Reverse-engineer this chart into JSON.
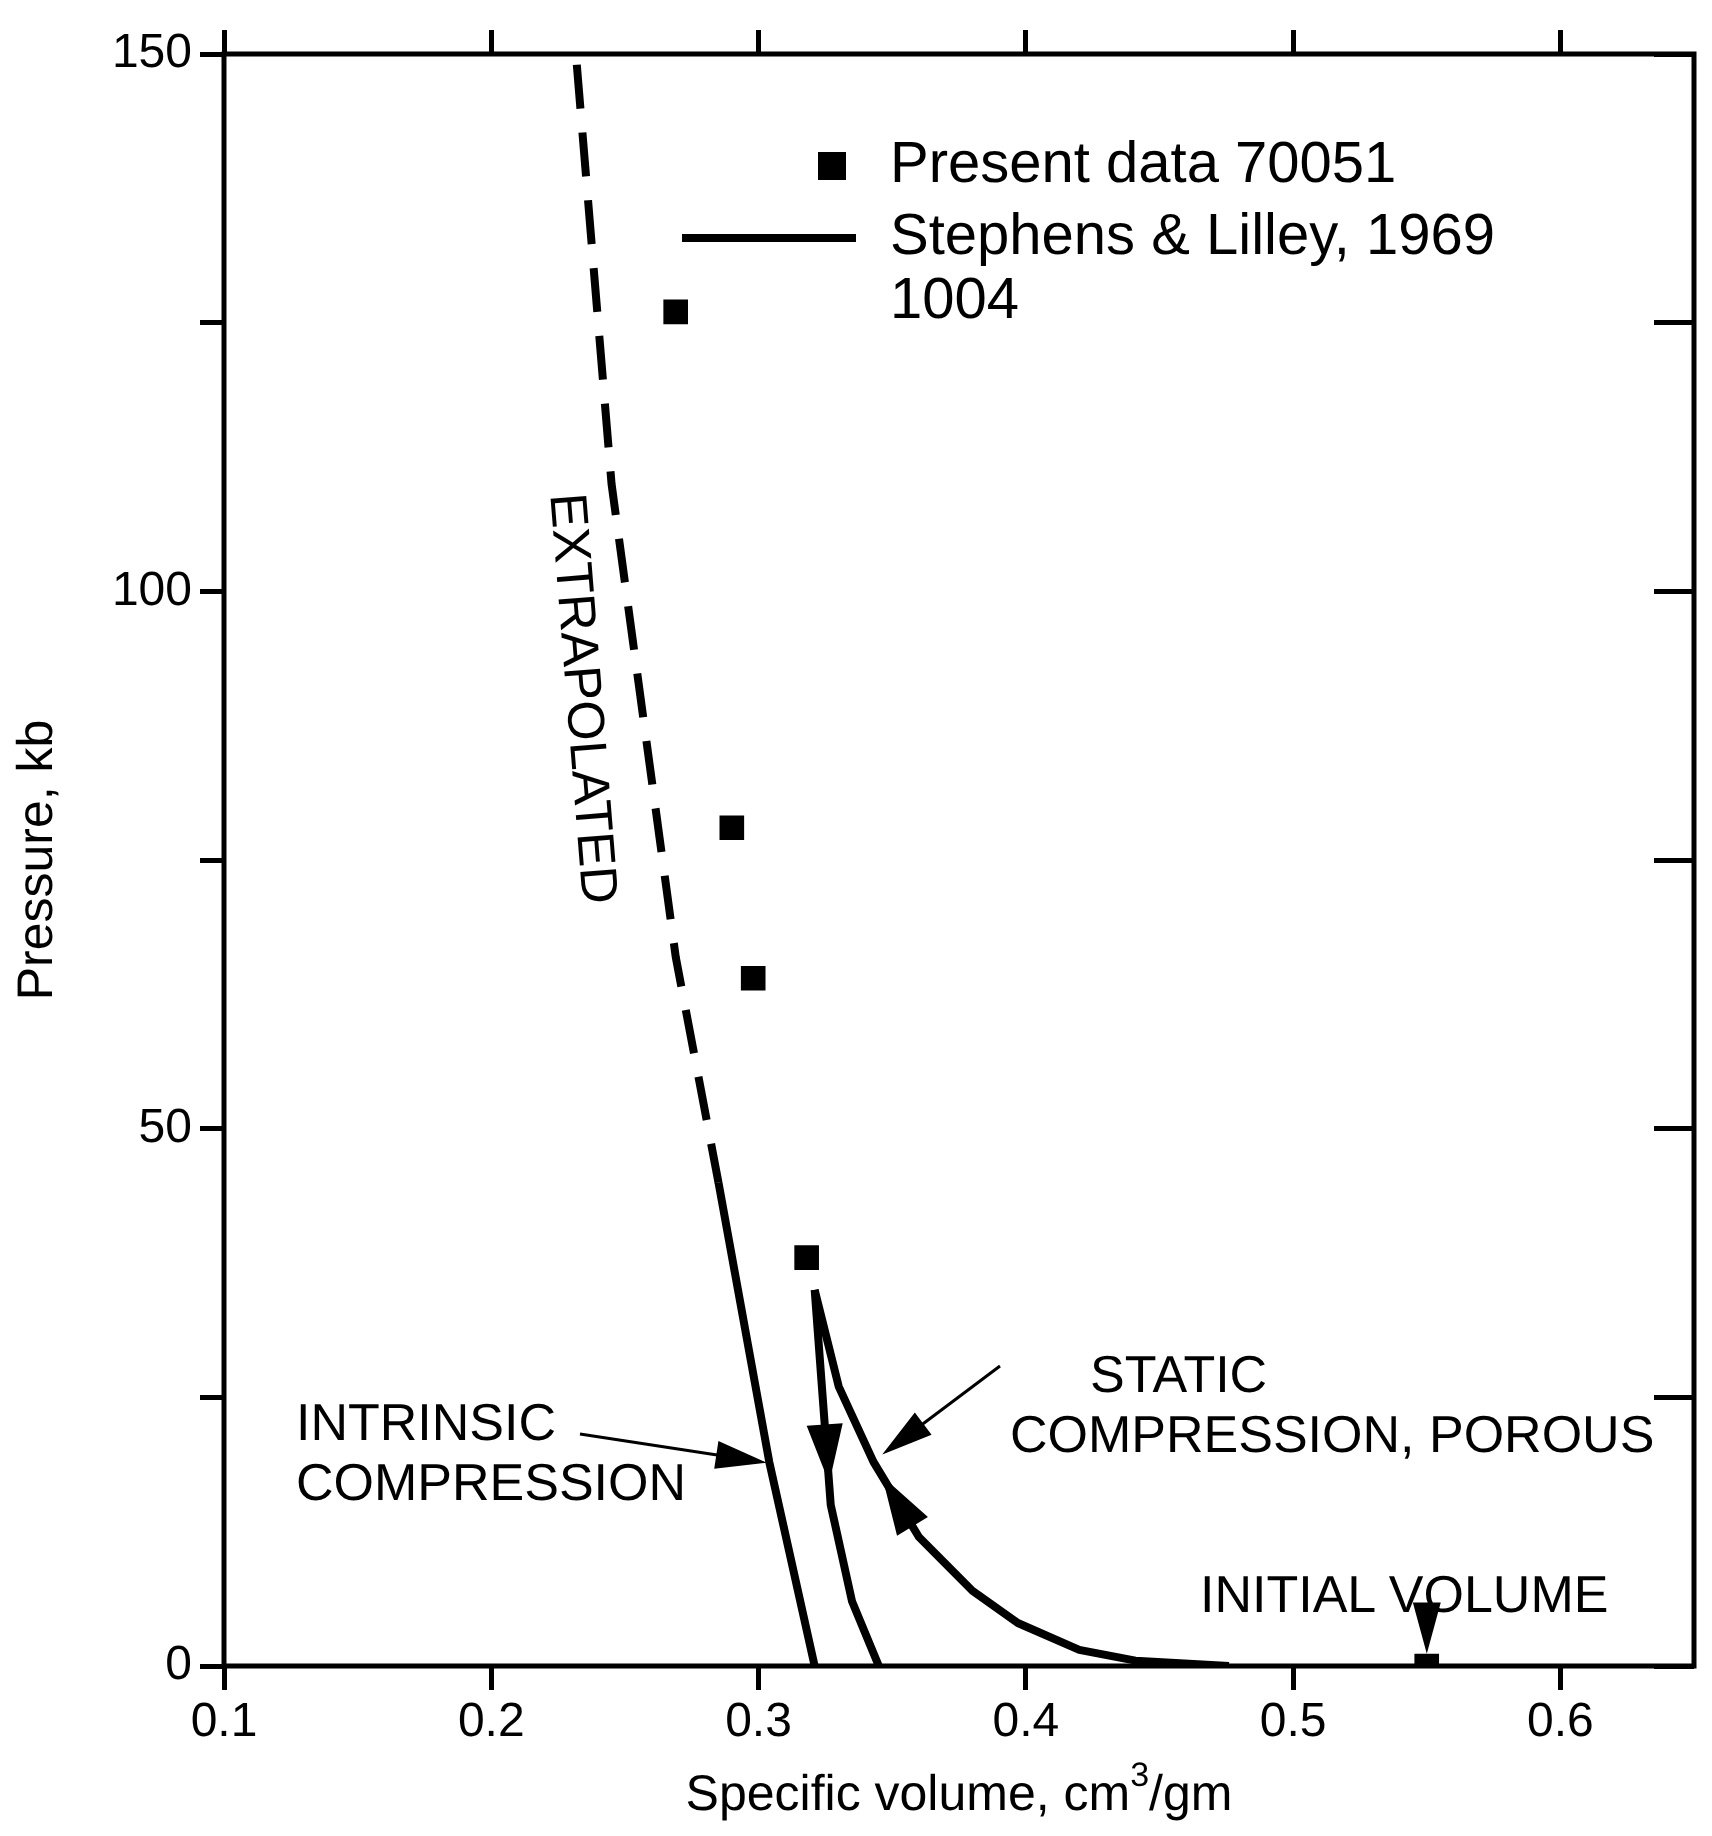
{
  "chart_data": {
    "type": "scatter",
    "xlabel": "Specific volume, cm$^{3}$/gm",
    "ylabel": "Pressure, kb",
    "xlim": [
      0.1,
      0.65
    ],
    "ylim": [
      0,
      150
    ],
    "xticks": [
      0.1,
      0.2,
      0.3,
      0.4,
      0.5,
      0.6
    ],
    "yticks": [
      0,
      {
        "value": 25,
        "label": null
      },
      50,
      {
        "value": 75,
        "label": null
      },
      100,
      {
        "value": 125,
        "label": null
      },
      150
    ],
    "grid": false,
    "legend": "top right",
    "series": [
      {
        "name": "Present data 70051",
        "marker": "square",
        "color": "#000000",
        "x": [
          0.269,
          0.29,
          0.298,
          0.318,
          0.55
        ],
        "values": [
          126,
          78,
          64,
          38,
          0
        ]
      },
      {
        "name": "Stephens & Lilley, 1969 1004",
        "type": "line",
        "line_style": "solid",
        "marker": "none",
        "color": "#000000",
        "x": [
          0.285,
          0.304,
          0.321
        ],
        "values": [
          45,
          19,
          0
        ]
      },
      {
        "type": "line",
        "line_style": "dashed",
        "marker": "none",
        "color": "#000000",
        "x": [
          0.232,
          0.245,
          0.269,
          0.285
        ],
        "values": [
          149,
          110,
          66,
          45
        ]
      },
      {
        "type": "line",
        "line_style": "solid",
        "marker": "none",
        "color": "#000000",
        "x": [
          0.321,
          0.324,
          0.327,
          0.335,
          0.345
        ],
        "values": [
          35,
          25,
          15,
          6,
          0
        ]
      },
      {
        "type": "line",
        "line_style": "solid",
        "marker": "none",
        "color": "#000000",
        "x": [
          0.476,
          0.441,
          0.42,
          0.397,
          0.38,
          0.36,
          0.343,
          0.33,
          0.321
        ],
        "values": [
          0,
          0.5,
          1.5,
          4,
          7,
          12,
          19,
          26,
          35
        ]
      }
    ],
    "annotations": [
      {
        "text": "EXTRAPOLATED",
        "x": 0.256,
        "y": 90
      },
      {
        "text": "INTRINSIC COMPRESSION",
        "x": 0.304,
        "y": 19
      },
      {
        "text": "STATIC COMPRESSION, POROUS",
        "x": 0.345,
        "y": 20
      },
      {
        "text": "INITIAL VOLUME",
        "x": 0.55,
        "y": 0
      }
    ]
  }
}
